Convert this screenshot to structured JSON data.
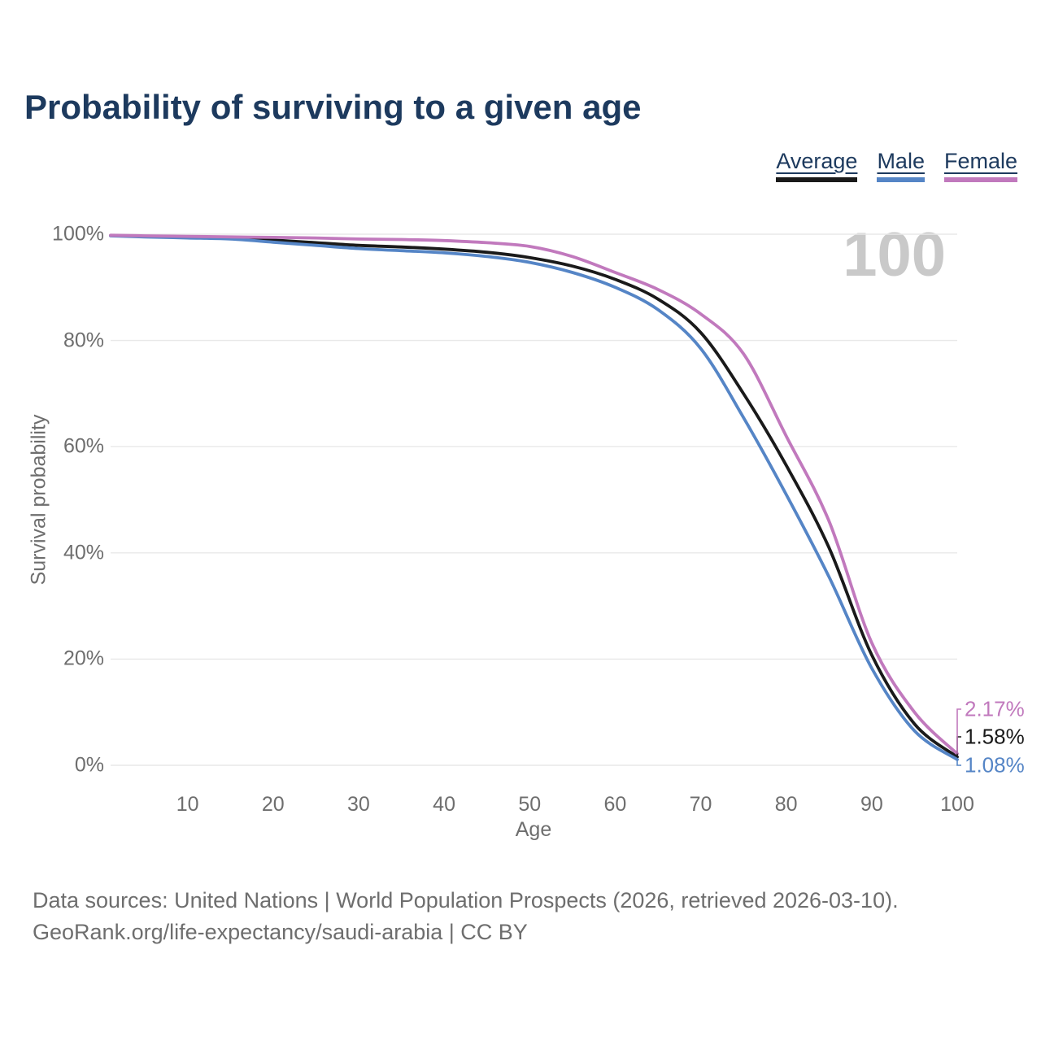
{
  "title": "Probability of surviving to a given age",
  "legend": {
    "items": [
      {
        "label": "Average",
        "color": "#1a1a1a"
      },
      {
        "label": "Male",
        "color": "#5585c6"
      },
      {
        "label": "Female",
        "color": "#c179bd"
      }
    ]
  },
  "watermark": "100",
  "axes": {
    "ylabel": "Survival probability",
    "xlabel": "Age"
  },
  "footer": {
    "line1": "Data sources: United Nations | World Population Prospects (2026, retrieved 2026-03-10).",
    "line2": "GeoRank.org/life-expectancy/saudi-arabia | CC BY"
  },
  "chart_data": {
    "type": "line",
    "title": "Probability of surviving to a given age",
    "xlabel": "Age",
    "ylabel": "Survival probability",
    "xlim": [
      1,
      100
    ],
    "ylim": [
      0,
      100
    ],
    "grid": "horizontal",
    "legend_position": "top-right",
    "x": [
      1,
      5,
      10,
      15,
      20,
      25,
      30,
      35,
      40,
      45,
      50,
      55,
      60,
      65,
      70,
      75,
      80,
      85,
      90,
      95,
      100
    ],
    "series": [
      {
        "name": "Average",
        "color": "#1a1a1a",
        "values": [
          99.75,
          99.6,
          99.45,
          99.3,
          98.9,
          98.4,
          97.9,
          97.6,
          97.2,
          96.6,
          95.6,
          94.0,
          91.5,
          87.8,
          81.5,
          70.0,
          56.5,
          41.0,
          20.8,
          7.8,
          1.58
        ],
        "end_label": "1.58%"
      },
      {
        "name": "Male",
        "color": "#5585c6",
        "values": [
          99.7,
          99.5,
          99.3,
          99.1,
          98.5,
          97.9,
          97.3,
          96.9,
          96.5,
          95.8,
          94.7,
          92.8,
          90.0,
          85.8,
          78.5,
          65.5,
          51.0,
          35.5,
          18.3,
          6.5,
          1.08
        ],
        "end_label": "1.08%"
      },
      {
        "name": "Female",
        "color": "#c179bd",
        "values": [
          99.8,
          99.7,
          99.6,
          99.5,
          99.4,
          99.3,
          99.1,
          99.0,
          98.8,
          98.4,
          97.7,
          95.8,
          92.8,
          89.6,
          85.0,
          77.5,
          62.0,
          46.0,
          23.1,
          10.0,
          2.17
        ],
        "end_label": "2.17%"
      }
    ],
    "xticks": [
      10,
      20,
      30,
      40,
      50,
      60,
      70,
      80,
      90,
      100
    ],
    "yticks": [
      0,
      20,
      40,
      60,
      80,
      100
    ],
    "ytick_labels": [
      "0%",
      "20%",
      "40%",
      "60%",
      "80%",
      "100%"
    ]
  }
}
